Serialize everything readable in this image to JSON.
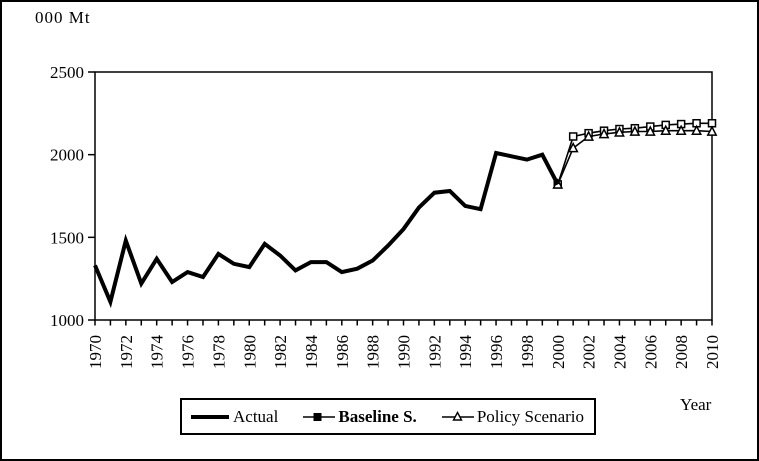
{
  "window": {
    "background": "#ffffff",
    "border_color": "#000000"
  },
  "chart_data": {
    "type": "line",
    "title": "",
    "unit_label": "000 Mt",
    "xlabel": "Year",
    "ylabel": "",
    "ylim": [
      1000,
      2500
    ],
    "yticks": [
      2500,
      2000,
      1500,
      1000
    ],
    "xlim": [
      1970,
      2010
    ],
    "xtick_step": 1,
    "xlabel_step": 2,
    "grid": false,
    "legend_position": "bottom",
    "line_color": "#000000",
    "marker_fill": "#ffffff",
    "series": [
      {
        "name": "Actual",
        "marker": "none",
        "line_width": "thick",
        "x": [
          1970,
          1971,
          1972,
          1973,
          1974,
          1975,
          1976,
          1977,
          1978,
          1979,
          1980,
          1981,
          1982,
          1983,
          1984,
          1985,
          1986,
          1987,
          1988,
          1989,
          1990,
          1991,
          1992,
          1993,
          1994,
          1995,
          1996,
          1997,
          1998,
          1999,
          2000
        ],
        "values": [
          1330,
          1110,
          1480,
          1220,
          1370,
          1230,
          1290,
          1260,
          1400,
          1340,
          1320,
          1460,
          1390,
          1300,
          1350,
          1350,
          1290,
          1310,
          1360,
          1450,
          1550,
          1680,
          1770,
          1780,
          1690,
          1670,
          2010,
          1990,
          1970,
          2000,
          1820
        ]
      },
      {
        "name": "Baseline S.",
        "marker": "square",
        "line_width": "thin",
        "x": [
          2000,
          2001,
          2002,
          2003,
          2004,
          2005,
          2006,
          2007,
          2008,
          2009,
          2010
        ],
        "values": [
          1820,
          2110,
          2130,
          2145,
          2155,
          2160,
          2170,
          2180,
          2185,
          2190,
          2190
        ]
      },
      {
        "name": "Policy Scenario",
        "marker": "triangle",
        "line_width": "thin",
        "x": [
          2000,
          2001,
          2002,
          2003,
          2004,
          2005,
          2006,
          2007,
          2008,
          2009,
          2010
        ],
        "values": [
          1820,
          2040,
          2110,
          2125,
          2135,
          2140,
          2140,
          2145,
          2145,
          2145,
          2140
        ]
      }
    ]
  }
}
